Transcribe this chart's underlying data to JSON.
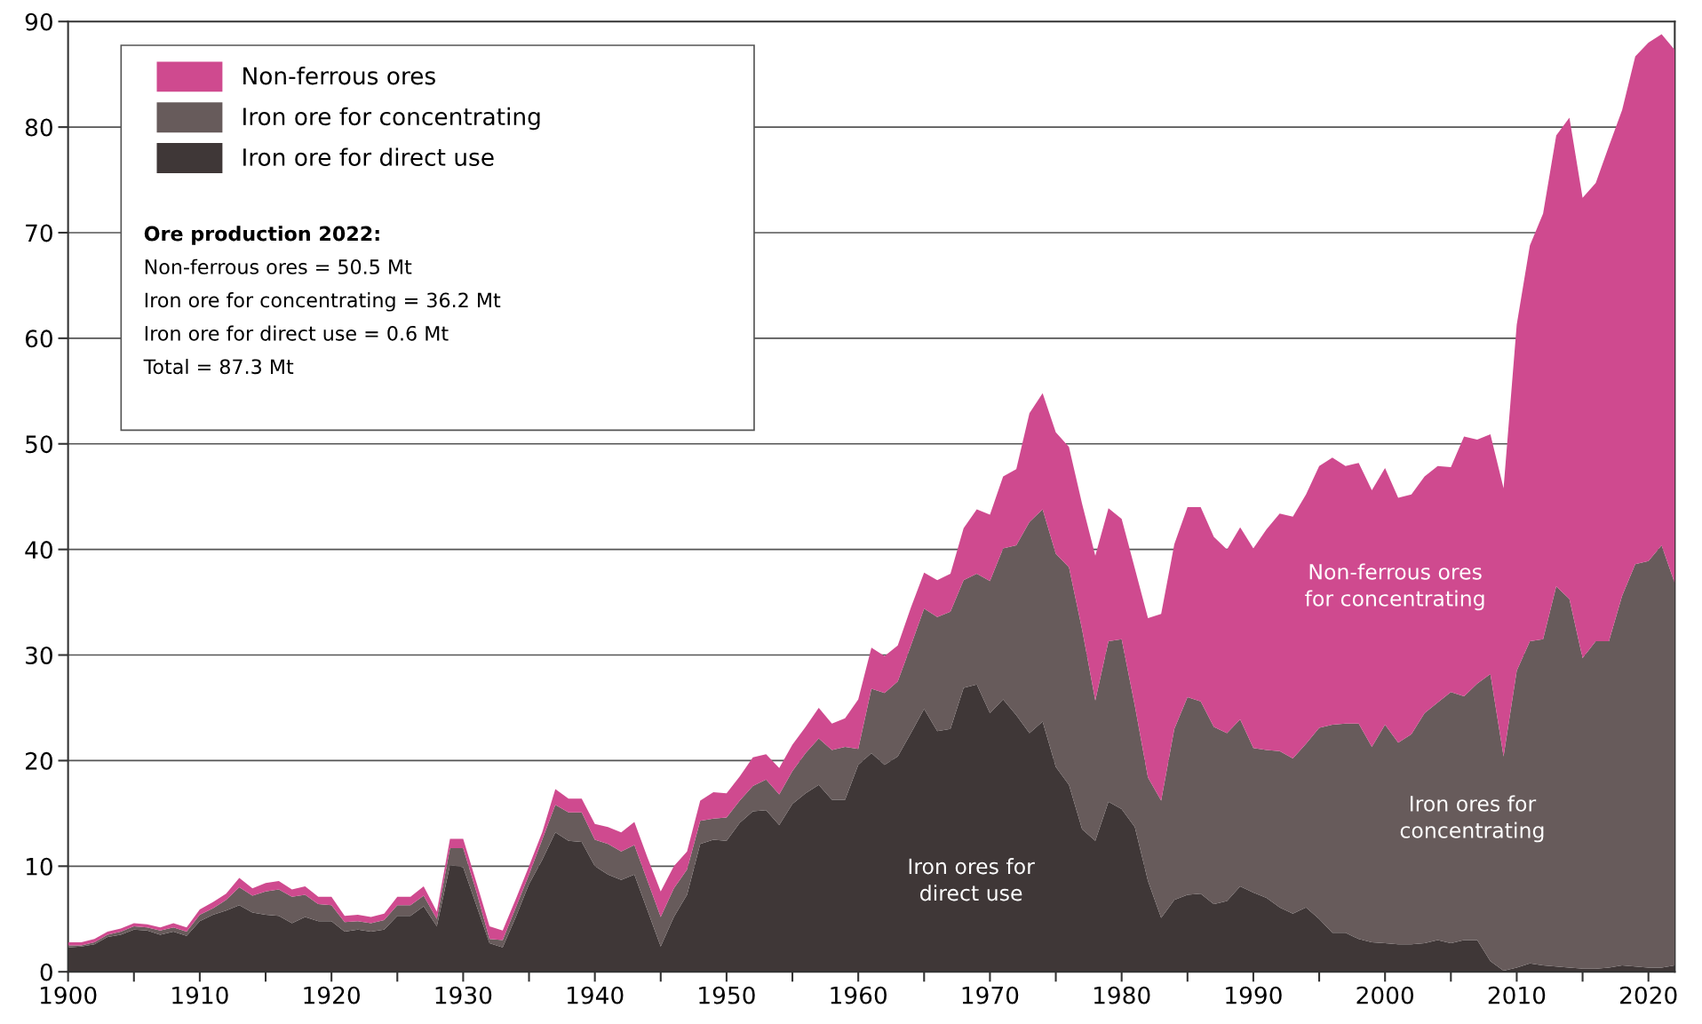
{
  "chart_data": {
    "type": "area",
    "stacked": true,
    "x": [
      1900,
      1901,
      1902,
      1903,
      1904,
      1905,
      1906,
      1907,
      1908,
      1909,
      1910,
      1911,
      1912,
      1913,
      1914,
      1915,
      1916,
      1917,
      1918,
      1919,
      1920,
      1921,
      1922,
      1923,
      1924,
      1925,
      1926,
      1927,
      1928,
      1929,
      1930,
      1931,
      1932,
      1933,
      1934,
      1935,
      1936,
      1937,
      1938,
      1939,
      1940,
      1941,
      1942,
      1943,
      1944,
      1945,
      1946,
      1947,
      1948,
      1949,
      1950,
      1951,
      1952,
      1953,
      1954,
      1955,
      1956,
      1957,
      1958,
      1959,
      1960,
      1961,
      1962,
      1963,
      1964,
      1965,
      1966,
      1967,
      1968,
      1969,
      1970,
      1971,
      1972,
      1973,
      1974,
      1975,
      1976,
      1977,
      1978,
      1979,
      1980,
      1981,
      1982,
      1983,
      1984,
      1985,
      1986,
      1987,
      1988,
      1989,
      1990,
      1991,
      1992,
      1993,
      1994,
      1995,
      1996,
      1997,
      1998,
      1999,
      2000,
      2001,
      2002,
      2003,
      2004,
      2005,
      2006,
      2007,
      2008,
      2009,
      2010,
      2011,
      2012,
      2013,
      2014,
      2015,
      2016,
      2017,
      2018,
      2019,
      2020,
      2021,
      2022
    ],
    "series": [
      {
        "name": "Iron ore for direct use",
        "color": "#3f3737",
        "values": [
          2.3,
          2.4,
          2.6,
          3.3,
          3.5,
          4.0,
          3.9,
          3.5,
          3.8,
          3.4,
          4.8,
          5.4,
          5.8,
          6.3,
          5.6,
          5.4,
          5.3,
          4.6,
          5.2,
          4.8,
          4.8,
          3.8,
          4.0,
          3.8,
          4.0,
          5.3,
          5.3,
          6.2,
          4.3,
          10.1,
          9.9,
          6.3,
          2.7,
          2.3,
          5.2,
          8.3,
          10.6,
          13.2,
          12.4,
          12.3,
          10.0,
          9.2,
          8.7,
          9.2,
          5.8,
          2.4,
          5.2,
          7.3,
          12.1,
          12.5,
          12.4,
          14.1,
          15.2,
          15.3,
          13.9,
          15.9,
          16.9,
          17.7,
          16.3,
          16.3,
          19.6,
          20.7,
          19.6,
          20.4,
          22.6,
          24.9,
          22.8,
          23.0,
          26.9,
          27.2,
          24.5,
          25.8,
          24.3,
          22.6,
          23.7,
          19.4,
          17.7,
          13.5,
          12.4,
          16.1,
          15.4,
          13.7,
          8.6,
          5.1,
          6.8,
          7.3,
          7.4,
          6.4,
          6.7,
          8.1,
          7.5,
          7.0,
          6.1,
          5.5,
          6.1,
          5.0,
          3.7,
          3.7,
          3.1,
          2.8,
          2.7,
          2.6,
          2.6,
          2.7,
          3.0,
          2.7,
          3.0,
          3.0,
          1.0,
          0.1,
          0.4,
          0.8,
          0.6,
          0.5,
          0.4,
          0.3,
          0.3,
          0.4,
          0.6,
          0.5,
          0.4,
          0.4,
          0.6
        ]
      },
      {
        "name": "Iron ore for concentrating",
        "color": "#675b5b",
        "values": [
          0.2,
          0.1,
          0.2,
          0.2,
          0.3,
          0.3,
          0.3,
          0.4,
          0.4,
          0.4,
          0.6,
          0.6,
          1.0,
          1.7,
          1.6,
          2.2,
          2.5,
          2.5,
          2.1,
          1.6,
          1.5,
          0.9,
          0.8,
          0.8,
          0.9,
          1.0,
          1.0,
          1.0,
          0.7,
          1.6,
          1.8,
          1.3,
          0.4,
          0.7,
          0.9,
          0.9,
          1.9,
          2.6,
          2.7,
          2.8,
          2.5,
          2.9,
          2.7,
          2.8,
          2.8,
          2.8,
          2.7,
          2.4,
          2.2,
          2.0,
          2.2,
          2.1,
          2.4,
          2.9,
          2.9,
          3.1,
          3.8,
          4.4,
          4.7,
          5.0,
          1.5,
          6.1,
          6.8,
          7.1,
          8.3,
          9.5,
          10.8,
          11.1,
          10.2,
          10.5,
          12.5,
          14.3,
          16.1,
          20.0,
          20.1,
          20.2,
          20.6,
          18.9,
          13.3,
          15.2,
          16.1,
          11.5,
          9.8,
          11.1,
          16.2,
          18.7,
          18.2,
          16.8,
          15.9,
          15.8,
          13.7,
          14.0,
          14.8,
          14.7,
          15.5,
          18.1,
          19.7,
          19.8,
          20.4,
          18.5,
          20.7,
          19.1,
          19.9,
          21.8,
          22.5,
          23.8,
          23.1,
          24.3,
          27.2,
          20.3,
          28.1,
          30.5,
          30.9,
          36.0,
          34.9,
          29.4,
          31.0,
          30.9,
          35.0,
          38.1,
          38.5,
          40.0,
          36.2
        ]
      },
      {
        "name": "Non-ferrous ores",
        "color": "#cf4a8f",
        "values": [
          0.3,
          0.3,
          0.3,
          0.3,
          0.3,
          0.3,
          0.3,
          0.3,
          0.4,
          0.4,
          0.5,
          0.6,
          0.6,
          0.9,
          0.7,
          0.8,
          0.8,
          0.7,
          0.8,
          0.7,
          0.8,
          0.6,
          0.6,
          0.6,
          0.6,
          0.8,
          0.8,
          0.9,
          0.7,
          0.9,
          0.9,
          0.9,
          1.2,
          0.9,
          0.8,
          0.8,
          0.7,
          1.5,
          1.3,
          1.3,
          1.5,
          1.6,
          1.8,
          2.2,
          2.2,
          2.4,
          2.1,
          1.7,
          1.9,
          2.5,
          2.3,
          2.3,
          2.7,
          2.4,
          2.5,
          2.5,
          2.5,
          2.9,
          2.5,
          2.7,
          4.7,
          3.9,
          3.5,
          3.4,
          3.6,
          3.4,
          3.5,
          3.6,
          4.9,
          6.1,
          6.3,
          6.8,
          7.2,
          10.3,
          11.0,
          11.5,
          11.4,
          11.9,
          13.7,
          12.6,
          11.4,
          13.0,
          15.1,
          17.7,
          17.5,
          18.0,
          18.4,
          18.0,
          17.4,
          18.2,
          18.9,
          20.9,
          22.5,
          22.9,
          23.6,
          24.8,
          25.3,
          24.4,
          24.7,
          24.3,
          24.3,
          23.2,
          22.7,
          22.4,
          22.4,
          21.3,
          24.6,
          23.1,
          22.7,
          25.4,
          32.8,
          37.5,
          40.3,
          42.7,
          45.6,
          43.6,
          43.4,
          46.9,
          46.0,
          48.1,
          49.1,
          48.4,
          50.5
        ]
      }
    ],
    "xlim": [
      1900,
      2022
    ],
    "xticks": [
      1900,
      {
        "value": 1905,
        "label": null
      },
      1910,
      {
        "value": 1915,
        "label": null
      },
      1920,
      {
        "value": 1925,
        "label": null
      },
      1930,
      {
        "value": 1935,
        "label": null
      },
      1940,
      {
        "value": 1945,
        "label": null
      },
      1950,
      {
        "value": 1955,
        "label": null
      },
      1960,
      {
        "value": 1965,
        "label": null
      },
      1970,
      {
        "value": 1975,
        "label": null
      },
      1980,
      {
        "value": 1985,
        "label": null
      },
      1990,
      {
        "value": 1995,
        "label": null
      },
      2000,
      {
        "value": 2005,
        "label": null
      },
      2010,
      {
        "value": 2015,
        "label": null
      },
      2020
    ],
    "ylim": [
      0,
      90
    ],
    "yticks": [
      0,
      10,
      20,
      30,
      40,
      50,
      60,
      70,
      80,
      90
    ],
    "grid": "y",
    "legend": "top left",
    "annotations": [
      "Ore production 2022:",
      "Non-ferrous ores = 50.5 Mt",
      "Iron ore for concentrating = 36.2 Mt",
      "Iron ore for direct use = 0.6 Mt",
      "Total = 87.3 Mt",
      "Iron ores for\ndirect use",
      "Non-ferrous ores\nfor concentrating",
      "Iron ores for\nconcentrating"
    ]
  }
}
